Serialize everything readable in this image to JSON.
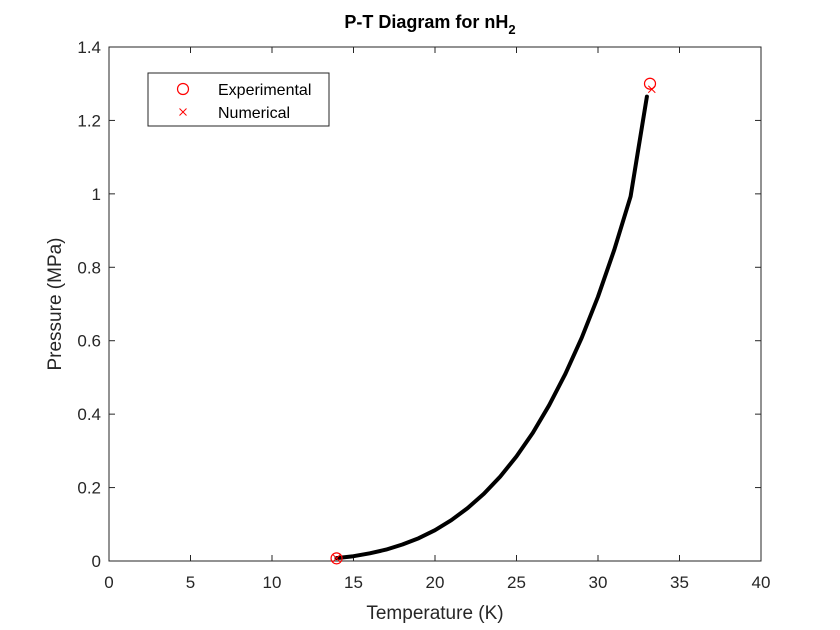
{
  "chart_data": {
    "type": "line",
    "title": "P-T Diagram for nH",
    "title_subscript": "2",
    "xlabel": "Temperature (K)",
    "ylabel": "Pressure (MPa)",
    "xlim": [
      0,
      40
    ],
    "ylim": [
      0,
      1.4
    ],
    "xticks": [
      0,
      5,
      10,
      15,
      20,
      25,
      30,
      35,
      40
    ],
    "yticks": [
      0,
      0.2,
      0.4,
      0.6,
      0.8,
      1,
      1.2,
      1.4
    ],
    "xtick_labels": [
      "0",
      "5",
      "10",
      "15",
      "20",
      "25",
      "30",
      "35",
      "40"
    ],
    "ytick_labels": [
      "0",
      "0.2",
      "0.4",
      "0.6",
      "0.8",
      "1",
      "1.2",
      "1.4"
    ],
    "grid": false,
    "legend_position": "top-left",
    "curve": {
      "color": "#000000",
      "x": [
        13.96,
        15,
        16,
        17,
        18,
        19,
        20,
        21,
        22,
        23,
        24,
        25,
        26,
        27,
        28,
        29,
        30,
        31,
        32,
        33.0
      ],
      "y": [
        0.008,
        0.013,
        0.021,
        0.031,
        0.045,
        0.062,
        0.084,
        0.111,
        0.144,
        0.183,
        0.23,
        0.285,
        0.349,
        0.424,
        0.51,
        0.608,
        0.72,
        0.848,
        0.993,
        1.265
      ]
    },
    "series": [
      {
        "name": "Experimental",
        "marker": "circle",
        "color": "#ff0000",
        "x": [
          13.96,
          33.19
        ],
        "y": [
          0.0072,
          1.3
        ]
      },
      {
        "name": "Numerical",
        "marker": "x",
        "color": "#ff0000",
        "x": [
          13.96,
          33.3
        ],
        "y": [
          0.0075,
          1.285
        ]
      }
    ]
  }
}
